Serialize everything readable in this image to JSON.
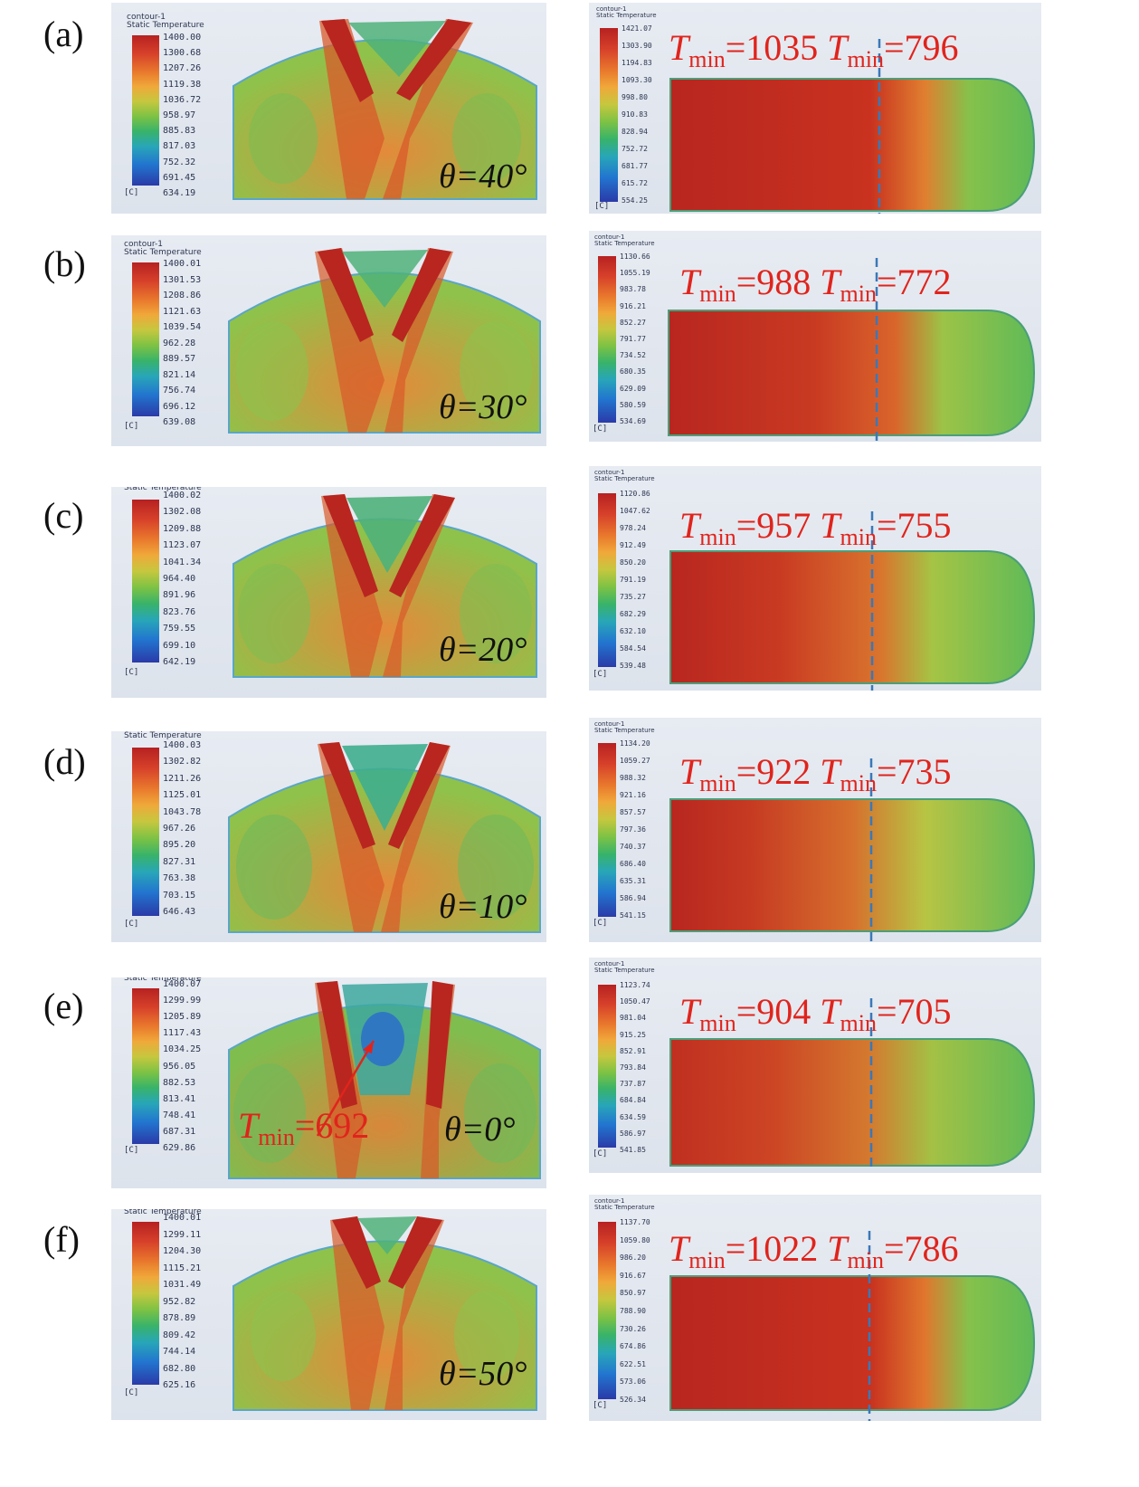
{
  "legend_header": "contour-1\nStatic Temperature",
  "unit": "[C]",
  "tmin_prefix": "T",
  "tmin_sub": "min",
  "panels": [
    {
      "label": "(a)",
      "angle": "θ=40°",
      "left_scale": [
        "1400.00",
        "1300.68",
        "1207.26",
        "1119.38",
        "1036.72",
        "958.97",
        "885.83",
        "817.03",
        "752.32",
        "691.45",
        "634.19"
      ],
      "right_scale": [
        "1421.07",
        "1303.90",
        "1194.83",
        "1093.30",
        "998.80",
        "910.83",
        "828.94",
        "752.72",
        "681.77",
        "615.72",
        "554.25"
      ],
      "tmin_left": "=1035",
      "tmin_right": "=796"
    },
    {
      "label": "(b)",
      "angle": "θ=30°",
      "left_scale": [
        "1400.01",
        "1301.53",
        "1208.86",
        "1121.63",
        "1039.54",
        "962.28",
        "889.57",
        "821.14",
        "756.74",
        "696.12",
        "639.08"
      ],
      "right_scale": [
        "1130.66",
        "1055.19",
        "983.78",
        "916.21",
        "852.27",
        "791.77",
        "734.52",
        "680.35",
        "629.09",
        "580.59",
        "534.69"
      ],
      "tmin_left": "=988",
      "tmin_right": "=772"
    },
    {
      "label": "(c)",
      "angle": "θ=20°",
      "left_scale": [
        "1400.02",
        "1302.08",
        "1209.88",
        "1123.07",
        "1041.34",
        "964.40",
        "891.96",
        "823.76",
        "759.55",
        "699.10",
        "642.19"
      ],
      "right_scale": [
        "1120.86",
        "1047.62",
        "978.24",
        "912.49",
        "850.20",
        "791.19",
        "735.27",
        "682.29",
        "632.10",
        "584.54",
        "539.48"
      ],
      "tmin_left": "=957",
      "tmin_right": "=755"
    },
    {
      "label": "(d)",
      "angle": "θ=10°",
      "left_scale": [
        "1400.03",
        "1302.82",
        "1211.26",
        "1125.01",
        "1043.78",
        "967.26",
        "895.20",
        "827.31",
        "763.38",
        "703.15",
        "646.43"
      ],
      "right_scale": [
        "1134.20",
        "1059.27",
        "988.32",
        "921.16",
        "857.57",
        "797.36",
        "740.37",
        "686.40",
        "635.31",
        "586.94",
        "541.15"
      ],
      "tmin_left": "=922",
      "tmin_right": "=735"
    },
    {
      "label": "(e)",
      "angle": "θ=0°",
      "left_scale": [
        "1400.07",
        "1299.99",
        "1205.89",
        "1117.43",
        "1034.25",
        "956.05",
        "882.53",
        "813.41",
        "748.41",
        "687.31",
        "629.86"
      ],
      "right_scale": [
        "1123.74",
        "1050.47",
        "981.04",
        "915.25",
        "852.91",
        "793.84",
        "737.87",
        "684.84",
        "634.59",
        "586.97",
        "541.85"
      ],
      "tmin_left": "=904",
      "tmin_right": "=705",
      "tmin_inplot": "=692"
    },
    {
      "label": "(f)",
      "angle": "θ=50°",
      "left_scale": [
        "1400.01",
        "1299.11",
        "1204.30",
        "1115.21",
        "1031.49",
        "952.82",
        "878.89",
        "809.42",
        "744.14",
        "682.80",
        "625.16"
      ],
      "right_scale": [
        "1137.70",
        "1059.80",
        "986.20",
        "916.67",
        "850.97",
        "788.90",
        "730.26",
        "674.86",
        "622.51",
        "573.06",
        "526.34"
      ],
      "tmin_left": "=1022",
      "tmin_right": "=786"
    }
  ]
}
